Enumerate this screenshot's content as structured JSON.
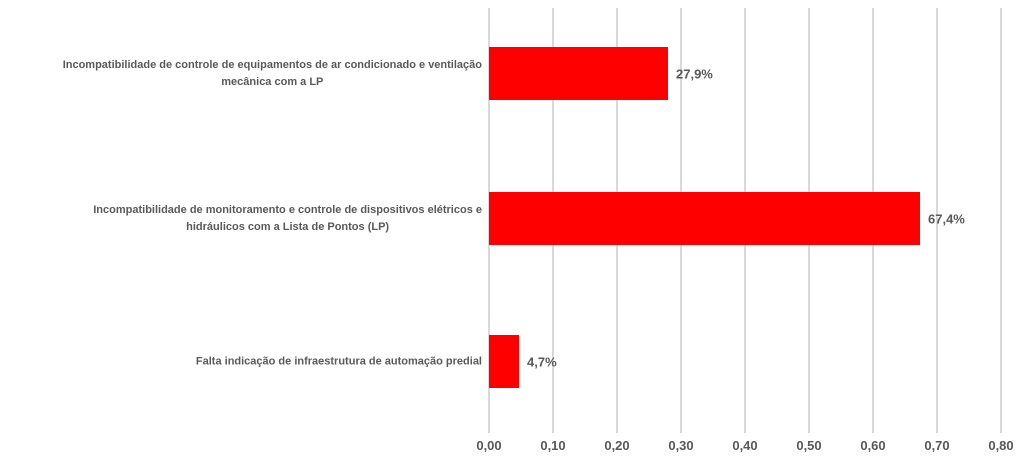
{
  "chart_data": {
    "type": "bar",
    "orientation": "horizontal",
    "title": "",
    "categories": [
      "Incompatibilidade de controle de equipamentos de ar condicionado e ventilação mecânica com a LP",
      "Incompatibilidade de monitoramento e controle de dispositivos elétricos e hidráulicos com a Lista de Pontos (LP)",
      "Falta indicação de infraestrutura de automação predial"
    ],
    "category_lines": [
      [
        "Incompatibilidade de controle de equipamentos de ar condicionado e ventilação",
        "mecânica com a LP"
      ],
      [
        "Incompatibilidade de monitoramento e controle de dispositivos elétricos e",
        "hidráulicos com a Lista de Pontos (LP)"
      ],
      [
        "Falta indicação de infraestrutura de automação predial"
      ]
    ],
    "values": [
      0.279,
      0.674,
      0.047
    ],
    "data_labels": [
      "27,9%",
      "67,4%",
      "4,7%"
    ],
    "xlabel": "",
    "ylabel": "",
    "xlim": [
      0,
      0.8
    ],
    "x_tick_values": [
      0,
      0.1,
      0.2,
      0.3,
      0.4,
      0.5,
      0.6,
      0.7,
      0.8
    ],
    "x_tick_labels": [
      "0,00",
      "0,10",
      "0,20",
      "0,30",
      "0,40",
      "0,50",
      "0,60",
      "0,70",
      "0,80"
    ],
    "grid": true,
    "legend": "none",
    "colors": {
      "bar": "#ff0000",
      "text": "#595959",
      "gridline": "#d9d9d9",
      "background": "#ffffff"
    }
  }
}
